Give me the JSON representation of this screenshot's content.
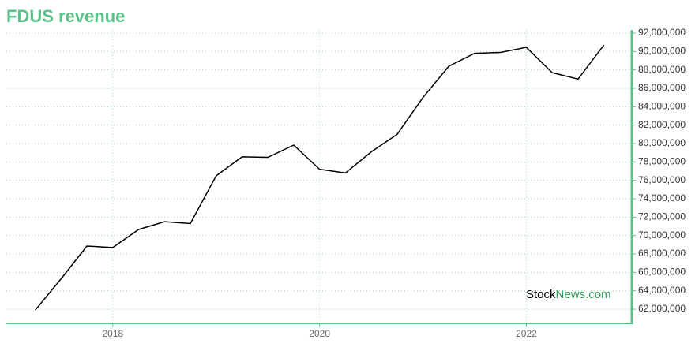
{
  "chart_data": {
    "type": "line",
    "title": "FDUS revenue",
    "x": [
      2017.25,
      2017.5,
      2017.75,
      2018,
      2018.25,
      2018.5,
      2018.75,
      2019,
      2019.25,
      2019.5,
      2019.75,
      2020,
      2020.25,
      2020.5,
      2020.75,
      2021,
      2021.25,
      2021.5,
      2021.75,
      2022,
      2022.25,
      2022.5,
      2022.75
    ],
    "values": [
      61900000,
      65300000,
      68860000,
      68700000,
      70660000,
      71500000,
      71300000,
      76500000,
      78550000,
      78500000,
      79830000,
      77200000,
      76800000,
      79100000,
      81000000,
      85000000,
      88400000,
      89800000,
      89900000,
      90450000,
      87700000,
      87000000,
      90700000
    ],
    "color": "#000000",
    "xlim": [
      2016.97,
      2023.02
    ],
    "xticks": [
      2018,
      2020,
      2022
    ],
    "ylim": [
      60460000,
      92340000
    ],
    "yticks": [
      {
        "value": 62000000,
        "label": "62,000,000"
      },
      {
        "value": 64000000,
        "label": "64,000,000"
      },
      {
        "value": 66000000,
        "label": "66,000,000"
      },
      {
        "value": 68000000,
        "label": "68,000,000"
      },
      {
        "value": 70000000,
        "label": "70,000,000"
      },
      {
        "value": 72000000,
        "label": "72,000,000"
      },
      {
        "value": 74000000,
        "label": "74,000,000"
      },
      {
        "value": 76000000,
        "label": "76,000,000"
      },
      {
        "value": 78000000,
        "label": "78,000,000"
      },
      {
        "value": 80000000,
        "label": "80,000,000"
      },
      {
        "value": 82000000,
        "label": "82,000,000"
      },
      {
        "value": 84000000,
        "label": "84,000,000"
      },
      {
        "value": 86000000,
        "label": "86,000,000"
      },
      {
        "value": 88000000,
        "label": "88,000,000"
      },
      {
        "value": 90000000,
        "label": "90,000,000"
      },
      {
        "value": 92000000,
        "label": "92,000,000"
      }
    ],
    "grid": true,
    "axis_color": "#5cc08a",
    "watermark": {
      "brand": "Stock",
      "suffix": "News.com"
    }
  }
}
